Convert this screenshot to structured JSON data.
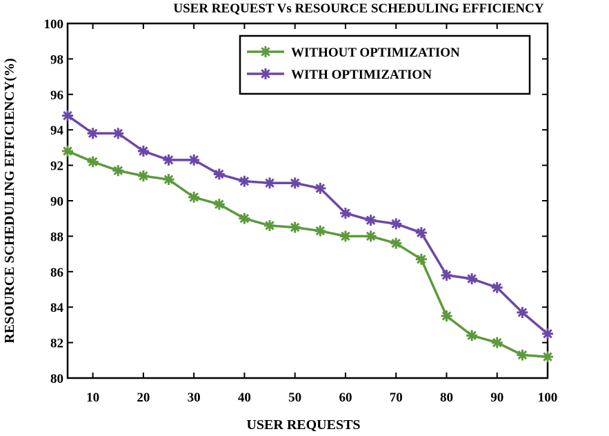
{
  "chart_data": {
    "type": "line",
    "title": "USER REQUEST Vs RESOURCE SCHEDULING EFFICIENCY",
    "xlabel": "USER REQUESTS",
    "ylabel": "RESOURCE SCHEDULING EFFICIENCY(%)",
    "xlim": [
      5,
      100
    ],
    "ylim": [
      80,
      100
    ],
    "xticks": [
      10,
      20,
      30,
      40,
      50,
      60,
      70,
      80,
      90,
      100
    ],
    "yticks": [
      80,
      82,
      84,
      86,
      88,
      90,
      92,
      94,
      96,
      98,
      100
    ],
    "grid": false,
    "legend_position": "top-right",
    "x": [
      5,
      10,
      15,
      20,
      25,
      30,
      35,
      40,
      45,
      50,
      55,
      60,
      65,
      70,
      75,
      80,
      85,
      90,
      95,
      100
    ],
    "series": [
      {
        "name": "WITHOUT OPTIMIZATION",
        "color": "#5c9a3c",
        "marker": "asterisk",
        "values": [
          92.8,
          92.2,
          91.7,
          91.4,
          91.2,
          90.2,
          89.8,
          89.0,
          88.6,
          88.5,
          88.3,
          88.0,
          88.0,
          87.6,
          86.7,
          83.5,
          82.4,
          82.0,
          81.3,
          81.2
        ]
      },
      {
        "name": "WITH OPTIMIZATION",
        "color": "#6a48a8",
        "marker": "asterisk",
        "values": [
          94.8,
          93.8,
          93.8,
          92.8,
          92.3,
          92.3,
          91.5,
          91.1,
          91.0,
          91.0,
          90.7,
          89.3,
          88.9,
          88.7,
          88.2,
          85.8,
          85.6,
          85.1,
          83.7,
          82.5
        ]
      }
    ]
  }
}
